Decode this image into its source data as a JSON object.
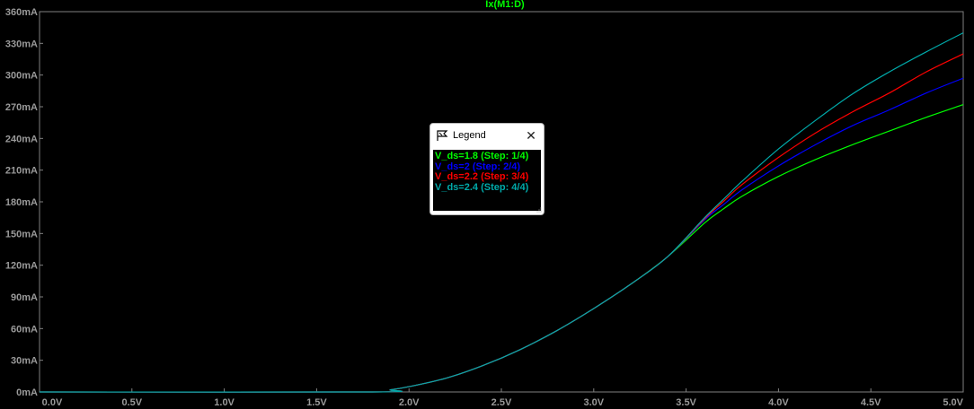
{
  "chart_data": {
    "type": "line",
    "title": "Ix(M1:D)",
    "xlabel": "",
    "ylabel": "",
    "xlim": [
      0,
      5
    ],
    "ylim": [
      0,
      360
    ],
    "x_ticks": [
      "0.0V",
      "0.5V",
      "1.0V",
      "1.5V",
      "2.0V",
      "2.5V",
      "3.0V",
      "3.5V",
      "4.0V",
      "4.5V",
      "5.0V"
    ],
    "y_ticks": [
      "0mA",
      "30mA",
      "60mA",
      "90mA",
      "120mA",
      "150mA",
      "180mA",
      "210mA",
      "240mA",
      "270mA",
      "300mA",
      "330mA",
      "360mA"
    ],
    "x_tick_values": [
      0,
      0.5,
      1,
      1.5,
      2,
      2.5,
      3,
      3.5,
      4,
      4.5,
      5
    ],
    "y_tick_values": [
      0,
      30,
      60,
      90,
      120,
      150,
      180,
      210,
      240,
      270,
      300,
      330,
      360
    ],
    "grid": false,
    "legend_position": "center",
    "series": [
      {
        "name": "V_ds=1.8  (Step: 1/4)",
        "color": "#00ff00",
        "x": [
          0,
          1.8,
          1.9,
          2.0,
          2.2,
          2.4,
          2.6,
          2.8,
          3.0,
          3.2,
          3.4,
          3.6,
          3.7,
          3.8,
          4.0,
          4.2,
          4.4,
          4.6,
          4.8,
          5.0
        ],
        "y": [
          0,
          0,
          2,
          5,
          13,
          25,
          40,
          58,
          79,
          102,
          128,
          160,
          173,
          185,
          204,
          220,
          234,
          247,
          260,
          272
        ]
      },
      {
        "name": "V_ds=2  (Step: 2/4)",
        "color": "#0000ff",
        "x": [
          0,
          1.8,
          1.9,
          2.0,
          2.2,
          2.4,
          2.6,
          2.8,
          3.0,
          3.2,
          3.4,
          3.6,
          3.7,
          3.8,
          4.0,
          4.2,
          4.4,
          4.6,
          4.8,
          5.0
        ],
        "y": [
          0,
          0,
          2,
          5,
          13,
          25,
          40,
          58,
          79,
          102,
          128,
          163,
          177,
          191,
          214,
          234,
          252,
          267,
          283,
          297
        ]
      },
      {
        "name": "V_ds=2.2  (Step: 3/4)",
        "color": "#ff0000",
        "x": [
          0,
          1.8,
          1.9,
          2.0,
          2.2,
          2.4,
          2.6,
          2.8,
          3.0,
          3.2,
          3.4,
          3.6,
          3.7,
          3.8,
          4.0,
          4.2,
          4.4,
          4.6,
          4.8,
          5.0
        ],
        "y": [
          0,
          0,
          2,
          5,
          13,
          25,
          40,
          58,
          79,
          102,
          128,
          164,
          180,
          196,
          222,
          245,
          265,
          283,
          303,
          320
        ]
      },
      {
        "name": "V_ds=2.4  (Step: 4/4)",
        "color": "#00aaaa",
        "x": [
          0,
          1.8,
          1.9,
          2.0,
          2.2,
          2.4,
          2.6,
          2.8,
          3.0,
          3.2,
          3.4,
          3.6,
          3.7,
          3.8,
          4.0,
          4.2,
          4.4,
          4.6,
          4.8,
          5.0
        ],
        "y": [
          0,
          0,
          2,
          5,
          13,
          25,
          40,
          58,
          79,
          102,
          128,
          165,
          182,
          199,
          230,
          257,
          282,
          303,
          322,
          340
        ]
      }
    ]
  },
  "legend": {
    "title": "Legend",
    "close_label": "✕",
    "icon": "legend-flag-icon"
  }
}
